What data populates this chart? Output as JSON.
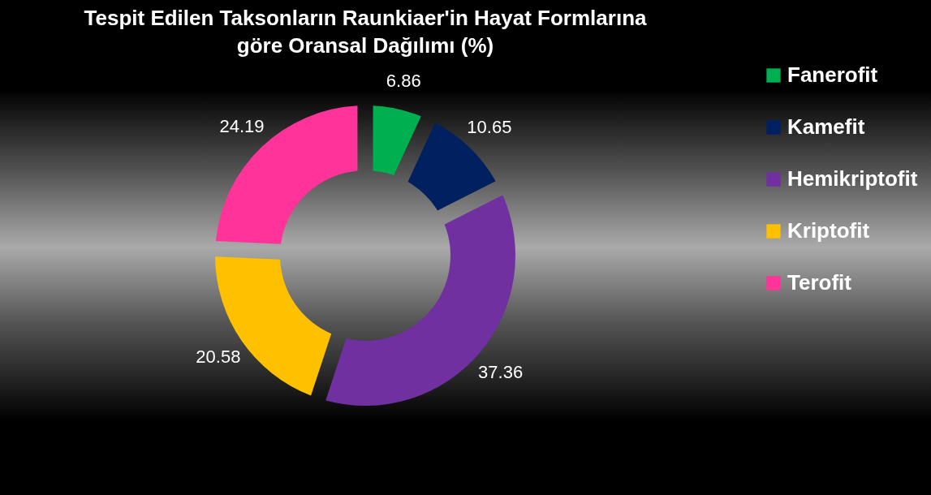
{
  "chart_data": {
    "type": "donut",
    "title": "Tespit Edilen Taksonların Raunkiaer'in Hayat Formlarına göre Oransal Dağılımı (%)",
    "categories": [
      "Fanerofit",
      "Kamefit",
      "Hemikriptofit",
      "Kriptofit",
      "Terofit"
    ],
    "values": [
      6.86,
      10.65,
      37.36,
      20.58,
      24.19
    ],
    "colors": [
      "#00b050",
      "#002060",
      "#7030a0",
      "#ffc000",
      "#ff3399"
    ],
    "data_labels": true,
    "legend": "right"
  }
}
